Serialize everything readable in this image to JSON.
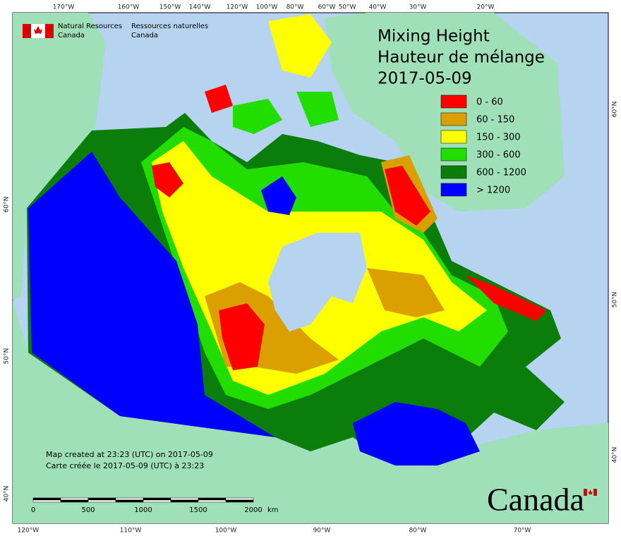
{
  "header": {
    "agency_en": [
      "Natural Resources",
      "Canada"
    ],
    "agency_fr": [
      "Ressources naturelles",
      "Canada"
    ]
  },
  "title": [
    "Mixing Height",
    "Hauteur de mélange",
    "2017-05-09"
  ],
  "legend": [
    {
      "label": "0 - 60",
      "color": "#ff0000"
    },
    {
      "label": "60 - 150",
      "color": "#dba000"
    },
    {
      "label": "150 - 300",
      "color": "#ffff00"
    },
    {
      "label": "300 - 600",
      "color": "#22dd00"
    },
    {
      "label": "600 - 1200",
      "color": "#0a7d0a"
    },
    {
      "label": "> 1200",
      "color": "#0000ff"
    }
  ],
  "graticule": {
    "top": [
      "170°W",
      "160°W",
      "150°W",
      "140°W",
      "120°W",
      "100°W",
      "80°W",
      "60°W",
      "50°W",
      "40°W",
      "30°W",
      "20°W"
    ],
    "bottom": [
      "120°W",
      "110°W",
      "100°W",
      "90°W",
      "80°W",
      "70°W"
    ],
    "left": [
      "60°N",
      "50°N",
      "40°N"
    ],
    "right": [
      "60°N",
      "50°N",
      "40°N"
    ]
  },
  "credits": [
    "Map created at 23:23 (UTC) on 2017-05-09",
    "Carte créée le 2017-05-09 (UTC) à 23:23"
  ],
  "scale_bar": {
    "labels": [
      "0",
      "500",
      "1000",
      "1500",
      "2000"
    ],
    "unit": "km"
  },
  "wordmark": "Canada"
}
